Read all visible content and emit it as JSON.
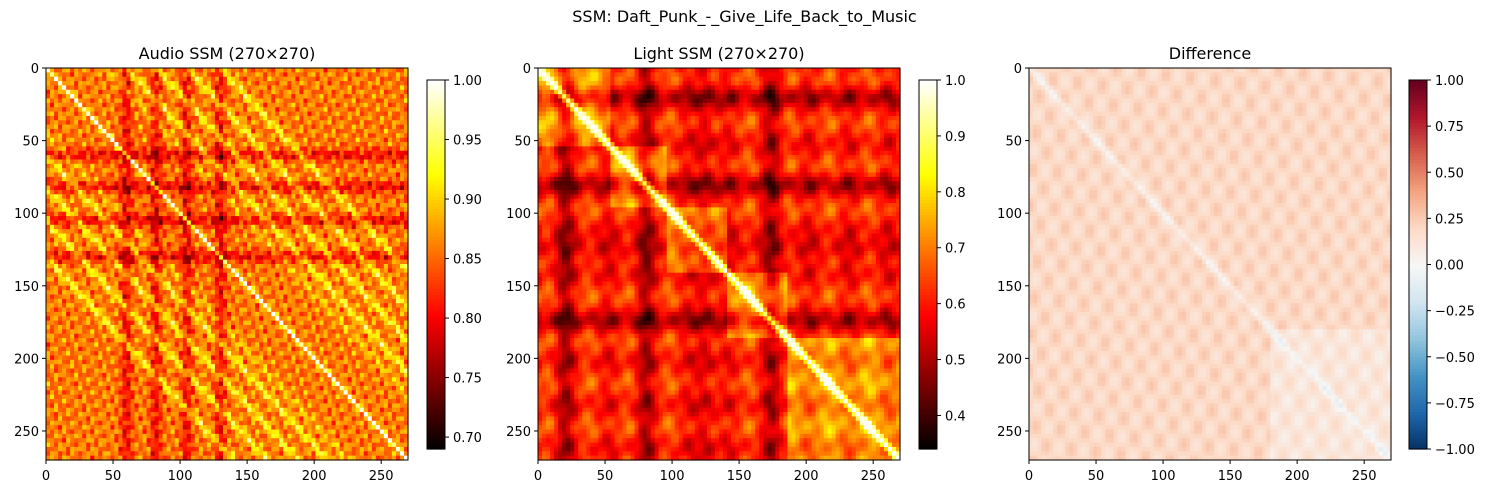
{
  "figure": {
    "suptitle": "SSM: Daft_Punk_-_Give_Life_Back_to_Music"
  },
  "chart_data": [
    {
      "type": "heatmap",
      "title": "Audio SSM (270×270)",
      "matrix_size": 270,
      "xlim": [
        0,
        270
      ],
      "ylim": [
        270,
        0
      ],
      "xticks": [
        0,
        50,
        100,
        150,
        200,
        250
      ],
      "yticks": [
        0,
        50,
        100,
        150,
        200,
        250
      ],
      "colormap": "hot",
      "colorbar": {
        "range": [
          0.69,
          1.0
        ],
        "ticks": [
          "0.70",
          "0.75",
          "0.80",
          "0.85",
          "0.90",
          "0.95",
          "1.00"
        ],
        "tick_values": [
          0.7,
          0.75,
          0.8,
          0.85,
          0.9,
          0.95,
          1.0
        ]
      },
      "structure": {
        "dark_bands": [
          60,
          82,
          105,
          130
        ],
        "off_diagonal_stripes": [
          -130,
          -105,
          -82,
          -60,
          60,
          82,
          105,
          130
        ],
        "secondary_stripes": [
          -45,
          45
        ]
      }
    },
    {
      "type": "heatmap",
      "title": "Light SSM (270×270)",
      "matrix_size": 270,
      "xlim": [
        0,
        270
      ],
      "ylim": [
        270,
        0
      ],
      "xticks": [
        0,
        50,
        100,
        150,
        200,
        250
      ],
      "yticks": [
        0,
        50,
        100,
        150,
        200,
        250
      ],
      "colormap": "hot",
      "colorbar": {
        "range": [
          0.34,
          1.0
        ],
        "ticks": [
          "0.4",
          "0.5",
          "0.6",
          "0.7",
          "0.8",
          "0.9",
          "1.0"
        ],
        "tick_values": [
          0.4,
          0.5,
          0.6,
          0.7,
          0.8,
          0.9,
          1.0
        ]
      },
      "structure": {
        "blocks": [
          [
            0,
            55
          ],
          [
            55,
            95
          ],
          [
            95,
            140
          ],
          [
            140,
            185
          ],
          [
            185,
            270
          ]
        ],
        "dark_bands": [
          20,
          80,
          125,
          175
        ]
      }
    },
    {
      "type": "heatmap",
      "title": "Difference",
      "matrix_size": 270,
      "xlim": [
        0,
        270
      ],
      "ylim": [
        270,
        0
      ],
      "xticks": [
        0,
        50,
        100,
        150,
        200,
        250
      ],
      "yticks": [
        0,
        50,
        100,
        150,
        200,
        250
      ],
      "colormap": "RdBu_r",
      "colorbar": {
        "range": [
          -1.0,
          1.0
        ],
        "ticks": [
          "1.00",
          "0.75",
          "0.50",
          "0.25",
          "0.00",
          "−0.25",
          "−0.50",
          "−0.75",
          "−1.00"
        ],
        "tick_values": [
          1.0,
          0.75,
          0.5,
          0.25,
          0.0,
          -0.25,
          -0.5,
          -0.75,
          -1.0
        ]
      },
      "structure": {
        "typical_value": 0.2
      }
    }
  ]
}
